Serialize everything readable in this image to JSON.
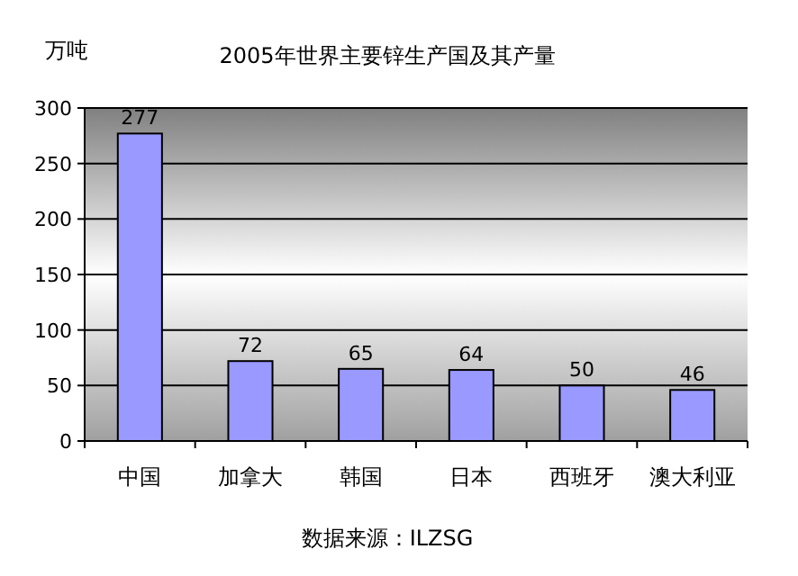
{
  "chart_data": {
    "type": "bar",
    "title": "2005年世界主要锌生产国及其产量",
    "ylabel": "万吨",
    "categories": [
      "中国",
      "加拿大",
      "韩国",
      "日本",
      "西班牙",
      "澳大利亚"
    ],
    "values": [
      277,
      72,
      65,
      64,
      50,
      46
    ],
    "color": "#9999ff",
    "ylim": [
      0,
      300
    ],
    "yticks": [
      0,
      50,
      100,
      150,
      200,
      250,
      300
    ],
    "grid": "y",
    "data_labels": true,
    "annotations": [
      "数据来源：ILZSG"
    ]
  }
}
